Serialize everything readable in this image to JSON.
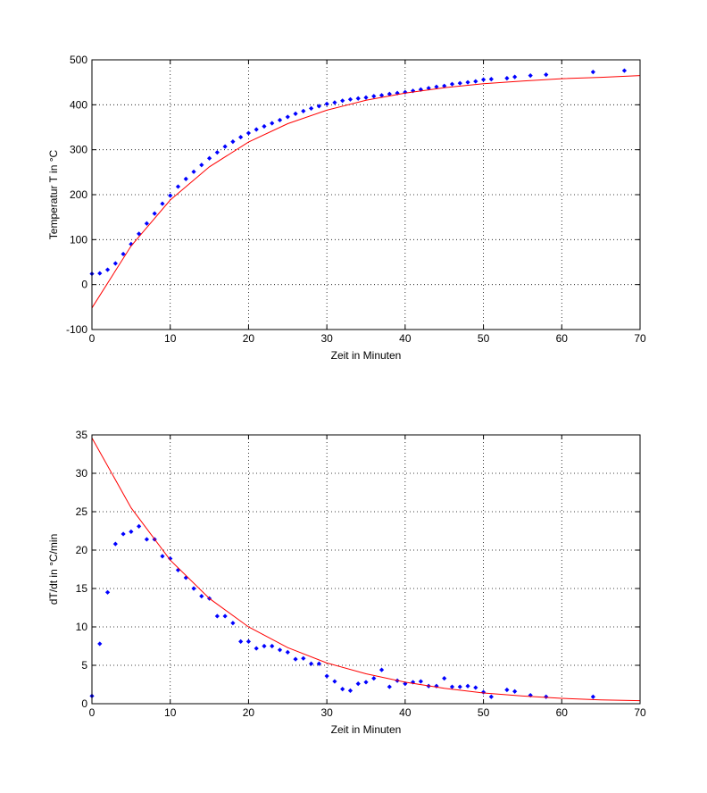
{
  "chart_data": [
    {
      "type": "scatter",
      "xlabel": "Zeit in Minuten",
      "ylabel": "Temperatur T in °C",
      "xlim": [
        0,
        70
      ],
      "ylim": [
        -100,
        500
      ],
      "xticks": [
        "0",
        "10",
        "20",
        "30",
        "40",
        "50",
        "60",
        "70"
      ],
      "yticks": [
        "-100",
        "0",
        "100",
        "200",
        "300",
        "400",
        "500"
      ],
      "grid": true,
      "colors": {
        "points": "#0000ff",
        "fit": "#ff0000"
      },
      "series": [
        {
          "kind": "points",
          "x": [
            0,
            1,
            2,
            3,
            4,
            5,
            6,
            7,
            8,
            9,
            10,
            11,
            12,
            13,
            14,
            15,
            16,
            17,
            18,
            19,
            20,
            21,
            22,
            23,
            24,
            25,
            26,
            27,
            28,
            29,
            30,
            31,
            32,
            33,
            34,
            35,
            36,
            37,
            38,
            39,
            40,
            41,
            42,
            43,
            44,
            45,
            46,
            47,
            48,
            49,
            50,
            51,
            53,
            54,
            56,
            58,
            64,
            68
          ],
          "y": [
            24,
            25,
            33,
            47,
            68,
            90,
            113,
            136,
            158,
            180,
            198,
            218,
            235,
            251,
            266,
            281,
            294,
            307,
            318,
            328,
            337,
            345,
            352,
            359,
            366,
            373,
            380,
            386,
            392,
            397,
            402,
            405,
            409,
            412,
            414,
            416,
            419,
            421,
            424,
            426,
            428,
            431,
            434,
            437,
            440,
            442,
            446,
            448,
            450,
            452,
            456,
            457,
            459,
            462,
            465,
            467,
            473,
            476
          ]
        },
        {
          "kind": "fit",
          "x": [
            0,
            5,
            10,
            15,
            20,
            25,
            30,
            35,
            40,
            45,
            50,
            55,
            60,
            65,
            70
          ],
          "y": [
            -52,
            86,
            188,
            262,
            317,
            358,
            388,
            410,
            426,
            438,
            447,
            453,
            458,
            461,
            465
          ]
        }
      ]
    },
    {
      "type": "scatter",
      "xlabel": "Zeit in Minuten",
      "ylabel": "dT/dt in °C/min",
      "xlim": [
        0,
        70
      ],
      "ylim": [
        0,
        35
      ],
      "xticks": [
        "0",
        "10",
        "20",
        "30",
        "40",
        "50",
        "60",
        "70"
      ],
      "yticks": [
        "0",
        "5",
        "10",
        "15",
        "20",
        "25",
        "30",
        "35"
      ],
      "grid": true,
      "colors": {
        "points": "#0000ff",
        "fit": "#ff0000"
      },
      "series": [
        {
          "kind": "points",
          "x": [
            0,
            1,
            2,
            3,
            4,
            5,
            6,
            7,
            8,
            9,
            10,
            11,
            12,
            13,
            14,
            15,
            16,
            17,
            18,
            19,
            20,
            21,
            22,
            23,
            24,
            25,
            26,
            27,
            28,
            29,
            30,
            31,
            32,
            33,
            34,
            35,
            36,
            37,
            38,
            39,
            40,
            41,
            42,
            43,
            44,
            45,
            46,
            47,
            48,
            49,
            50,
            51,
            53,
            54,
            56,
            58,
            64
          ],
          "y": [
            1.0,
            7.8,
            14.5,
            20.8,
            22.1,
            22.4,
            23.1,
            21.4,
            21.4,
            19.2,
            18.9,
            17.4,
            16.4,
            15.0,
            14.0,
            13.7,
            11.4,
            11.4,
            10.5,
            8.1,
            8.1,
            7.2,
            7.5,
            7.5,
            7.0,
            6.7,
            5.8,
            5.9,
            5.2,
            5.2,
            3.6,
            2.9,
            1.9,
            1.7,
            2.6,
            2.8,
            3.3,
            4.4,
            2.2,
            3.0,
            2.6,
            2.8,
            2.9,
            2.3,
            2.3,
            3.3,
            2.2,
            2.2,
            2.3,
            2.1,
            1.5,
            0.9,
            1.8,
            1.6,
            1.1,
            0.9,
            0.9
          ]
        },
        {
          "kind": "fit",
          "x": [
            0,
            5,
            10,
            15,
            20,
            25,
            30,
            35,
            40,
            45,
            50,
            55,
            60,
            65,
            70
          ],
          "y": [
            34.6,
            25.5,
            18.7,
            13.7,
            10.0,
            7.3,
            5.3,
            3.9,
            2.8,
            2.0,
            1.4,
            1.0,
            0.7,
            0.5,
            0.4
          ]
        }
      ]
    }
  ]
}
